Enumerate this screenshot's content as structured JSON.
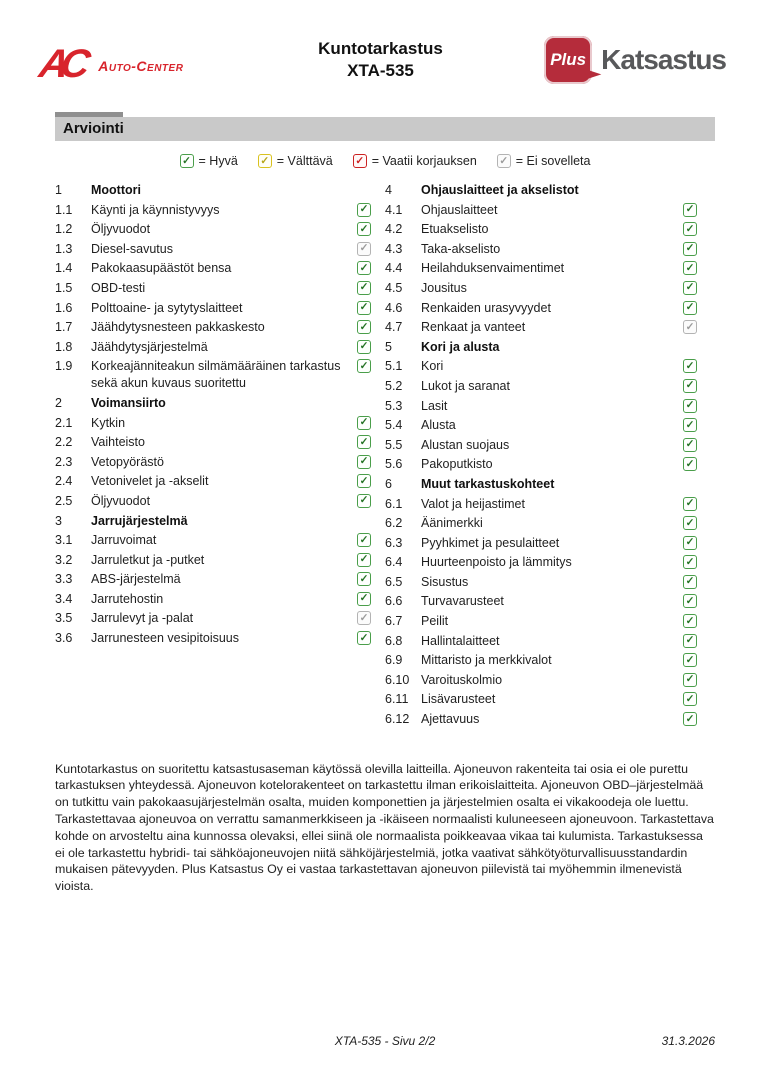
{
  "header": {
    "logo_left": {
      "mark": "AC",
      "name": "Auto-Center"
    },
    "title_line1": "Kuntotarkastus",
    "title_line2": "XTA-535",
    "logo_right": {
      "plus": "Plus",
      "name": "Katsastus"
    }
  },
  "section": {
    "title": "Arviointi"
  },
  "colors": {
    "good": "#4a9e4a",
    "fair": "#d9c21f",
    "repair": "#cc2222",
    "na": "#b3b3b3",
    "logo_red": "#d8242c",
    "plus_red": "#b52c3b",
    "katsastus_gray": "#58595b",
    "bar_gray": "#c9c9c9"
  },
  "legend": [
    {
      "status": "good",
      "label": "= Hyvä"
    },
    {
      "status": "fair",
      "label": "= Välttävä"
    },
    {
      "status": "repair",
      "label": "= Vaatii korjauksen"
    },
    {
      "status": "na",
      "label": "= Ei sovelleta"
    }
  ],
  "checklist": {
    "columns": [
      {
        "items": [
          {
            "num": "1",
            "label": "Moottori",
            "header": true
          },
          {
            "num": "1.1",
            "label": "Käynti ja käynnistyvyys",
            "status": "good"
          },
          {
            "num": "1.2",
            "label": "Öljyvuodot",
            "status": "good"
          },
          {
            "num": "1.3",
            "label": "Diesel-savutus",
            "status": "na"
          },
          {
            "num": "1.4",
            "label": "Pakokaasupäästöt bensa",
            "status": "good"
          },
          {
            "num": "1.5",
            "label": "OBD-testi",
            "status": "good"
          },
          {
            "num": "1.6",
            "label": "Polttoaine- ja sytytyslaitteet",
            "status": "good"
          },
          {
            "num": "1.7",
            "label": "Jäähdytysnesteen pakkaskesto",
            "status": "good"
          },
          {
            "num": "1.8",
            "label": "Jäähdytysjärjestelmä",
            "status": "good"
          },
          {
            "num": "1.9",
            "label": "Korkeajänniteakun silmämääräinen tarkastus sekä akun kuvaus suoritettu",
            "status": "good"
          },
          {
            "num": "2",
            "label": "Voimansiirto",
            "header": true
          },
          {
            "num": "2.1",
            "label": "Kytkin",
            "status": "good"
          },
          {
            "num": "2.2",
            "label": "Vaihteisto",
            "status": "good"
          },
          {
            "num": "2.3",
            "label": "Vetopyörästö",
            "status": "good"
          },
          {
            "num": "2.4",
            "label": "Vetonivelet ja -akselit",
            "status": "good"
          },
          {
            "num": "2.5",
            "label": "Öljyvuodot",
            "status": "good"
          },
          {
            "num": "3",
            "label": "Jarrujärjestelmä",
            "header": true
          },
          {
            "num": "3.1",
            "label": "Jarruvoimat",
            "status": "good"
          },
          {
            "num": "3.2",
            "label": "Jarruletkut ja -putket",
            "status": "good"
          },
          {
            "num": "3.3",
            "label": "ABS-järjestelmä",
            "status": "good"
          },
          {
            "num": "3.4",
            "label": "Jarrutehostin",
            "status": "good"
          },
          {
            "num": "3.5",
            "label": "Jarrulevyt ja -palat",
            "status": "na"
          },
          {
            "num": "3.6",
            "label": "Jarrunesteen vesipitoisuus",
            "status": "good"
          }
        ]
      },
      {
        "items": [
          {
            "num": "4",
            "label": "Ohjauslaitteet ja akselistot",
            "header": true
          },
          {
            "num": "4.1",
            "label": "Ohjauslaitteet",
            "status": "good"
          },
          {
            "num": "4.2",
            "label": "Etuakselisto",
            "status": "good"
          },
          {
            "num": "4.3",
            "label": "Taka-akselisto",
            "status": "good"
          },
          {
            "num": "4.4",
            "label": "Heilahduksenvaimentimet",
            "status": "good"
          },
          {
            "num": "4.5",
            "label": "Jousitus",
            "status": "good"
          },
          {
            "num": "4.6",
            "label": "Renkaiden urasyvyydet",
            "status": "good"
          },
          {
            "num": "4.7",
            "label": "Renkaat ja vanteet",
            "status": "na"
          },
          {
            "num": "5",
            "label": "Kori ja alusta",
            "header": true
          },
          {
            "num": "5.1",
            "label": "Kori",
            "status": "good"
          },
          {
            "num": "5.2",
            "label": "Lukot ja saranat",
            "status": "good"
          },
          {
            "num": "5.3",
            "label": "Lasit",
            "status": "good"
          },
          {
            "num": "5.4",
            "label": "Alusta",
            "status": "good"
          },
          {
            "num": "5.5",
            "label": "Alustan suojaus",
            "status": "good"
          },
          {
            "num": "5.6",
            "label": "Pakoputkisto",
            "status": "good"
          },
          {
            "num": "6",
            "label": "Muut tarkastuskohteet",
            "header": true
          },
          {
            "num": "6.1",
            "label": "Valot ja heijastimet",
            "status": "good"
          },
          {
            "num": "6.2",
            "label": "Äänimerkki",
            "status": "good"
          },
          {
            "num": "6.3",
            "label": "Pyyhkimet ja pesulaitteet",
            "status": "good"
          },
          {
            "num": "6.4",
            "label": "Huurteenpoisto ja lämmitys",
            "status": "good"
          },
          {
            "num": "6.5",
            "label": "Sisustus",
            "status": "good"
          },
          {
            "num": "6.6",
            "label": "Turvavarusteet",
            "status": "good"
          },
          {
            "num": "6.7",
            "label": "Peilit",
            "status": "good"
          },
          {
            "num": "6.8",
            "label": "Hallintalaitteet",
            "status": "good"
          },
          {
            "num": "6.9",
            "label": "Mittaristo ja merkkivalot",
            "status": "good"
          },
          {
            "num": "6.10",
            "label": "Varoituskolmio",
            "status": "good"
          },
          {
            "num": "6.11",
            "label": "Lisävarusteet",
            "status": "good"
          },
          {
            "num": "6.12",
            "label": "Ajettavuus",
            "status": "good"
          }
        ]
      }
    ]
  },
  "footer": {
    "disclaimer": "Kuntotarkastus on suoritettu katsastusaseman käytössä olevilla laitteilla. Ajoneuvon rakenteita tai osia ei ole purettu tarkastuksen yhteydessä. Ajoneuvon kotelorakenteet on tarkastettu ilman erikoislaitteita. Ajoneuvon OBD–järjestelmää on tutkittu vain pakokaasujärjestelmän osalta, muiden komponettien ja järjestelmien osalta ei vikakoodeja ole luettu. Tarkastettavaa ajoneuvoa on verrattu samanmerkkiseen ja -ikäiseen normaalisti kuluneeseen ajoneuvoon. Tarkastettava kohde on arvosteltu aina kunnossa olevaksi, ellei siinä ole normaalista poikkeavaa vikaa tai kulumista. Tarkastuksessa ei ole tarkastettu hybridi- tai sähköajoneuvojen niitä sähköjärjestelmiä, jotka vaativat sähkötyöturvallisuusstandardin mukaisen pätevyyden. Plus Katsastus Oy ei vastaa tarkastettavan ajoneuvon piilevistä tai myöhemmin ilmenevistä vioista.",
    "page_info": "XTA-535 - Sivu 2/2",
    "date": "31.3.2026"
  }
}
